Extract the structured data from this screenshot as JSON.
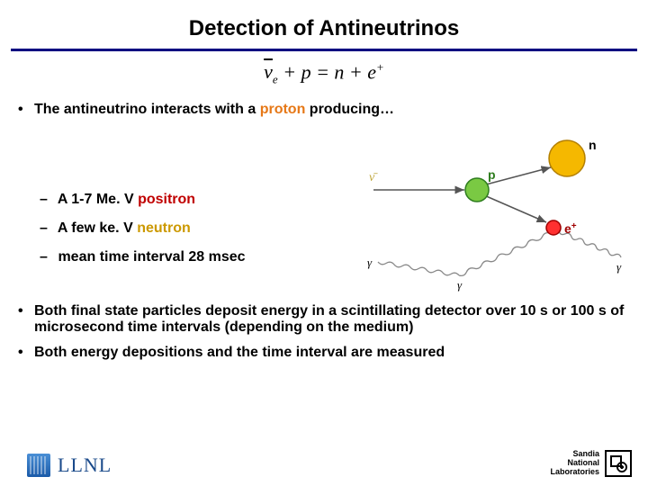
{
  "title": "Detection of Antineutrinos",
  "equation": {
    "lhs_nu": "ν",
    "lhs_nu_sub": "e",
    "plus1": " + ",
    "p": "p",
    "eq": " = ",
    "n": "n",
    "plus2": " + ",
    "e": "e",
    "e_sup": "+"
  },
  "bullets": {
    "b1_prefix": "The antineutrino interacts with a ",
    "b1_proton": "proton",
    "b1_suffix": " producing…",
    "sub1_prefix": "A 1-7 Me. V ",
    "sub1_word": "positron",
    "sub2_prefix": "A few ke. V ",
    "sub2_word": "neutron",
    "sub3_prefix": "mean time interval 28 ",
    "sub3_unit": "m",
    "sub3_suffix": "sec",
    "b2": "Both final state particles deposit energy in a scintillating detector over 10 s or 100 s of microsecond time intervals (depending on the medium)",
    "b3": "Both energy depositions and the time interval are measured"
  },
  "diagram": {
    "labels": {
      "nu": "ν̄",
      "p": "p",
      "n": "n",
      "eplus": "e",
      "eplus_sup": "+",
      "gamma": "γ"
    },
    "colors": {
      "nu": "#bfa63a",
      "proton_fill": "#7ac943",
      "proton_stroke": "#2e7d1e",
      "neutron_fill": "#f5b800",
      "neutron_stroke": "#b37f00",
      "positron_fill": "#ff3030",
      "positron_stroke": "#a00000",
      "wavy": "#888888"
    }
  },
  "footer": {
    "llnl": "LLNL",
    "sandia_line1": "Sandia",
    "sandia_line2": "National",
    "sandia_line3": "Laboratories"
  }
}
